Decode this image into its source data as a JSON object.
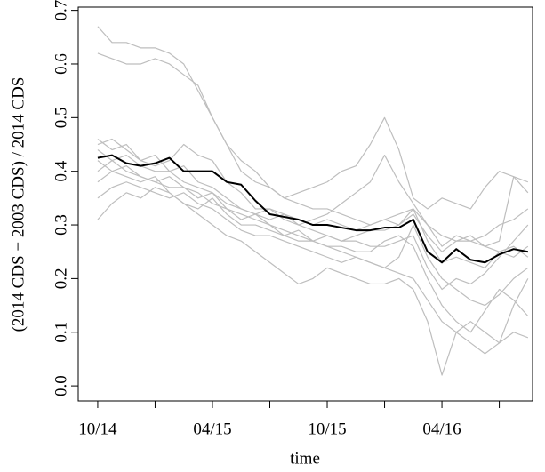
{
  "chart_data": {
    "type": "line",
    "xlabel": "time",
    "ylabel": "(2014 CDS − 2003 CDS) / 2014 CDS",
    "x": [
      0,
      0.75,
      1.5,
      2.25,
      3,
      3.75,
      4.5,
      5.25,
      6,
      6.75,
      7.5,
      8.25,
      9,
      9.75,
      10.5,
      11.25,
      12,
      12.75,
      13.5,
      14.25,
      15,
      15.75,
      16.5,
      17.25,
      18,
      18.75,
      19.5,
      20.25,
      21,
      21.75,
      22.5
    ],
    "xlim": [
      -1.02,
      22.74
    ],
    "xticks": [
      {
        "value": 0,
        "label": "10/14"
      },
      {
        "value": 6,
        "label": "04/15"
      },
      {
        "value": 12,
        "label": "10/15"
      },
      {
        "value": 18,
        "label": "04/16"
      }
    ],
    "xminorticks": [
      3,
      9,
      15,
      21
    ],
    "ylim": [
      -0.028,
      0.706
    ],
    "yticks": [
      {
        "value": 0,
        "label": "0.0"
      },
      0.1,
      0.2,
      0.3,
      0.4,
      0.5,
      0.6,
      0.7
    ],
    "series": [
      {
        "color": "#bebebe",
        "values": [
          0.67,
          0.64,
          0.64,
          0.63,
          0.63,
          0.62,
          0.6,
          0.55,
          0.5,
          0.45,
          0.42,
          0.4,
          0.37,
          0.35,
          0.34,
          0.33,
          0.33,
          0.32,
          0.31,
          0.3,
          0.31,
          0.32,
          0.33,
          0.3,
          0.28,
          0.27,
          0.27,
          0.28,
          0.3,
          0.31,
          0.33
        ]
      },
      {
        "color": "#bebebe",
        "values": [
          0.62,
          0.61,
          0.6,
          0.6,
          0.61,
          0.6,
          0.58,
          0.56,
          0.5,
          0.45,
          0.4,
          0.38,
          0.37,
          0.35,
          0.36,
          0.37,
          0.38,
          0.4,
          0.41,
          0.45,
          0.5,
          0.44,
          0.35,
          0.33,
          0.35,
          0.34,
          0.33,
          0.37,
          0.4,
          0.39,
          0.36
        ]
      },
      {
        "color": "#bebebe",
        "values": [
          0.46,
          0.44,
          0.45,
          0.42,
          0.43,
          0.4,
          0.41,
          0.38,
          0.37,
          0.35,
          0.33,
          0.32,
          0.3,
          0.29,
          0.28,
          0.27,
          0.26,
          0.25,
          0.24,
          0.23,
          0.22,
          0.21,
          0.2,
          0.16,
          0.12,
          0.1,
          0.08,
          0.06,
          0.08,
          0.1,
          0.09
        ]
      },
      {
        "color": "#bebebe",
        "values": [
          0.31,
          0.34,
          0.36,
          0.35,
          0.37,
          0.36,
          0.34,
          0.32,
          0.3,
          0.28,
          0.27,
          0.25,
          0.23,
          0.21,
          0.19,
          0.2,
          0.22,
          0.21,
          0.2,
          0.19,
          0.19,
          0.2,
          0.18,
          0.12,
          0.02,
          0.1,
          0.12,
          0.1,
          0.08,
          0.15,
          0.2
        ]
      },
      {
        "color": "#bebebe",
        "values": [
          0.44,
          0.42,
          0.4,
          0.39,
          0.38,
          0.37,
          0.37,
          0.35,
          0.36,
          0.34,
          0.33,
          0.32,
          0.31,
          0.32,
          0.3,
          0.29,
          0.28,
          0.27,
          0.27,
          0.26,
          0.26,
          0.27,
          0.28,
          0.22,
          0.18,
          0.2,
          0.19,
          0.21,
          0.24,
          0.27,
          0.3
        ]
      },
      {
        "color": "#bebebe",
        "values": [
          0.38,
          0.4,
          0.39,
          0.38,
          0.39,
          0.36,
          0.34,
          0.33,
          0.35,
          0.32,
          0.3,
          0.3,
          0.29,
          0.28,
          0.27,
          0.27,
          0.26,
          0.26,
          0.25,
          0.25,
          0.27,
          0.28,
          0.26,
          0.2,
          0.15,
          0.12,
          0.1,
          0.14,
          0.18,
          0.16,
          0.13
        ]
      },
      {
        "color": "#bebebe",
        "values": [
          0.4,
          0.42,
          0.43,
          0.41,
          0.4,
          0.4,
          0.38,
          0.37,
          0.36,
          0.33,
          0.31,
          0.32,
          0.33,
          0.32,
          0.31,
          0.3,
          0.31,
          0.3,
          0.29,
          0.3,
          0.31,
          0.3,
          0.32,
          0.28,
          0.25,
          0.27,
          0.28,
          0.26,
          0.27,
          0.39,
          0.38
        ]
      },
      {
        "color": "#bebebe",
        "values": [
          0.35,
          0.37,
          0.38,
          0.37,
          0.36,
          0.35,
          0.36,
          0.34,
          0.33,
          0.31,
          0.29,
          0.28,
          0.28,
          0.27,
          0.26,
          0.25,
          0.24,
          0.23,
          0.24,
          0.23,
          0.22,
          0.24,
          0.3,
          0.24,
          0.2,
          0.18,
          0.16,
          0.15,
          0.17,
          0.2,
          0.22
        ]
      },
      {
        "color": "#bebebe",
        "values": [
          0.45,
          0.46,
          0.44,
          0.42,
          0.41,
          0.42,
          0.45,
          0.43,
          0.42,
          0.38,
          0.36,
          0.33,
          0.33,
          0.31,
          0.3,
          0.31,
          0.32,
          0.34,
          0.36,
          0.38,
          0.43,
          0.38,
          0.34,
          0.3,
          0.26,
          0.28,
          0.27,
          0.26,
          0.25,
          0.24,
          0.26
        ]
      },
      {
        "color": "#bebebe",
        "values": [
          0.42,
          0.4,
          0.41,
          0.39,
          0.38,
          0.39,
          0.37,
          0.36,
          0.34,
          0.33,
          0.32,
          0.31,
          0.3,
          0.28,
          0.29,
          0.27,
          0.28,
          0.27,
          0.28,
          0.29,
          0.29,
          0.3,
          0.33,
          0.27,
          0.23,
          0.24,
          0.23,
          0.22,
          0.25,
          0.26,
          0.24
        ]
      },
      {
        "color": "#000000",
        "values": [
          0.425,
          0.43,
          0.415,
          0.41,
          0.415,
          0.425,
          0.4,
          0.4,
          0.4,
          0.38,
          0.375,
          0.345,
          0.32,
          0.315,
          0.31,
          0.3,
          0.3,
          0.295,
          0.29,
          0.29,
          0.295,
          0.295,
          0.31,
          0.25,
          0.23,
          0.255,
          0.235,
          0.23,
          0.245,
          0.255,
          0.25
        ]
      }
    ]
  }
}
